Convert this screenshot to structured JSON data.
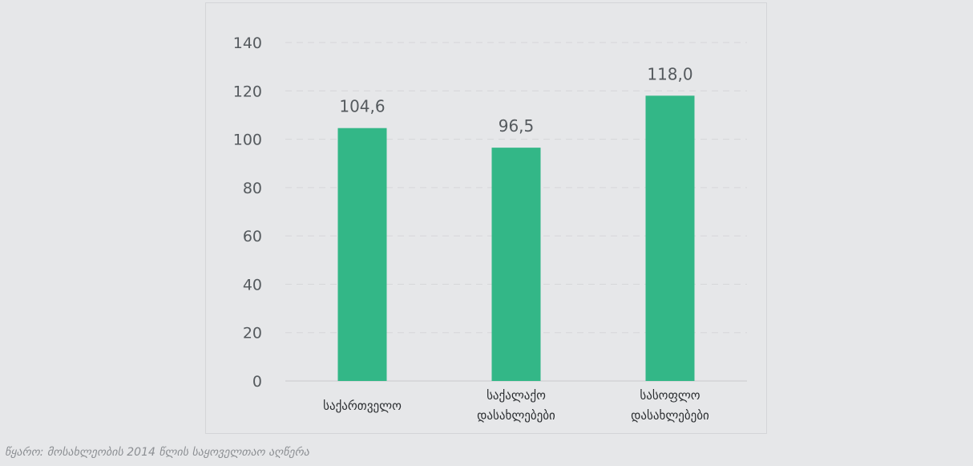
{
  "chart_data": {
    "type": "bar",
    "categories": [
      [
        "საქართველო"
      ],
      [
        "საქალაქო",
        "დასახლებები"
      ],
      [
        "სასოფლო",
        "დასახლებები"
      ]
    ],
    "values": [
      104.6,
      96.5,
      118.0
    ],
    "data_labels": [
      "104,6",
      "96,5",
      "118,0"
    ],
    "ylim": [
      0,
      140
    ],
    "yticks": [
      0,
      20,
      40,
      60,
      80,
      100,
      120,
      140
    ],
    "grid": true,
    "legend": "none",
    "bar_color": "#33b787",
    "title": "",
    "xlabel": "",
    "ylabel": ""
  },
  "source": "წყარო: მოსახლეობის 2014 წლის საყოველთაო აღწერა"
}
